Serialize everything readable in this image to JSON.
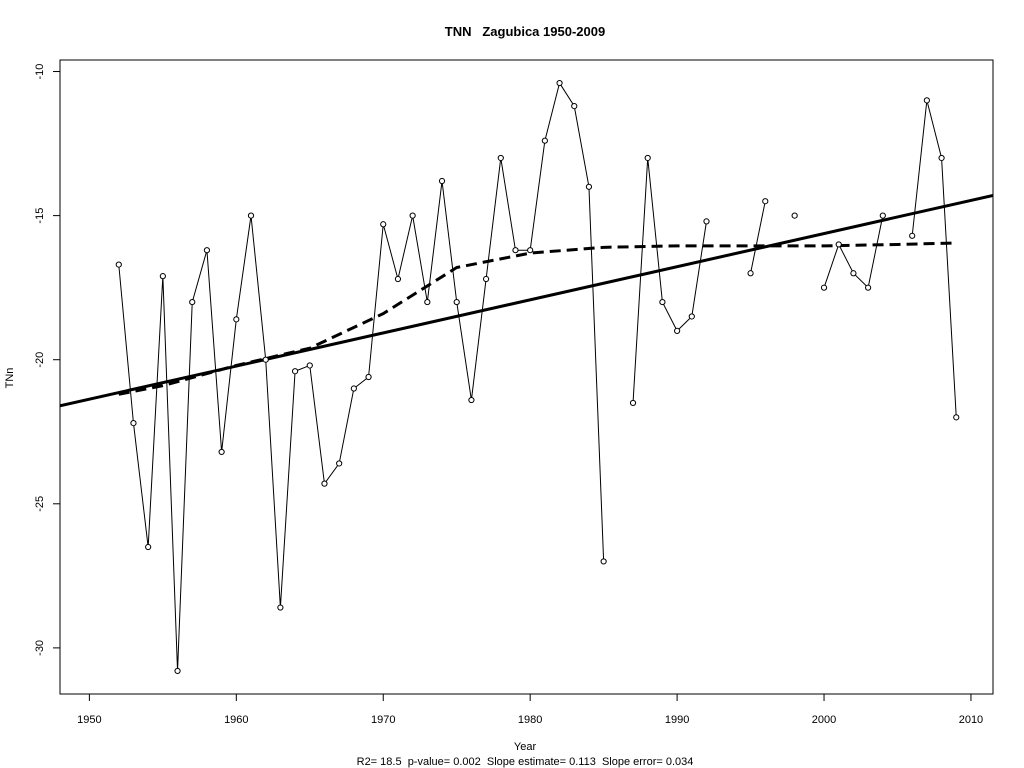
{
  "chart_data": {
    "type": "line",
    "title": "TNN   Zagubica 1950-2009",
    "xlabel": "Year",
    "ylabel": "TNn",
    "subtitle": "R2= 18.5  p-value= 0.002  Slope estimate= 0.113  Slope error= 0.034",
    "xlim": [
      1948,
      2011.5
    ],
    "ylim": [
      -31.6,
      -9.6
    ],
    "x_ticks": [
      1950,
      1960,
      1970,
      1980,
      1990,
      2000,
      2010
    ],
    "y_ticks": [
      -10,
      -15,
      -20,
      -25,
      -30
    ],
    "grid": false,
    "series": [
      {
        "style": "line-with-open-circles",
        "segments": [
          {
            "x": [
              1952,
              1953,
              1954,
              1955,
              1956,
              1957,
              1958,
              1959,
              1960,
              1961,
              1962,
              1963,
              1964,
              1965,
              1966,
              1967,
              1968,
              1969,
              1970,
              1971,
              1972,
              1973,
              1974,
              1975,
              1976,
              1977,
              1978,
              1979,
              1980,
              1981,
              1982,
              1983,
              1984,
              1985
            ],
            "y": [
              -16.7,
              -22.2,
              -26.5,
              -17.1,
              -30.8,
              -18.0,
              -16.2,
              -23.2,
              -18.6,
              -15.0,
              -20.0,
              -28.6,
              -20.4,
              -20.2,
              -24.3,
              -23.6,
              -21.0,
              -20.6,
              -15.3,
              -17.2,
              -15.0,
              -18.0,
              -13.8,
              -18.0,
              -21.4,
              -17.2,
              -13.0,
              -16.2,
              -16.2,
              -12.4,
              -10.4,
              -11.2,
              -14.0,
              -27.0
            ]
          },
          {
            "x": [
              1987,
              1988,
              1989,
              1990,
              1991,
              1992
            ],
            "y": [
              -21.5,
              -13.0,
              -18.0,
              -19.0,
              -18.5,
              -15.2
            ]
          },
          {
            "x": [
              1995,
              1996
            ],
            "y": [
              -17.0,
              -14.5
            ]
          },
          {
            "x": [
              1998
            ],
            "y": [
              -15.0
            ]
          },
          {
            "x": [
              2000,
              2001,
              2002,
              2003,
              2004
            ],
            "y": [
              -17.5,
              -16.0,
              -17.0,
              -17.5,
              -15.0
            ]
          },
          {
            "x": [
              2006,
              2007,
              2008,
              2009
            ],
            "y": [
              -15.7,
              -11.0,
              -13.0,
              -22.0
            ]
          }
        ]
      },
      {
        "style": "solid-thick",
        "x": [
          1948,
          2011.5
        ],
        "y": [
          -21.6,
          -14.3
        ]
      },
      {
        "style": "dashed-thick",
        "x": [
          1952,
          1955,
          1960,
          1965,
          1970,
          1975,
          1978,
          1980,
          1985,
          1990,
          2000,
          2005,
          2009
        ],
        "y": [
          -21.2,
          -20.9,
          -20.2,
          -19.6,
          -18.4,
          -16.8,
          -16.5,
          -16.3,
          -16.1,
          -16.05,
          -16.05,
          -16.0,
          -15.95
        ]
      }
    ]
  }
}
